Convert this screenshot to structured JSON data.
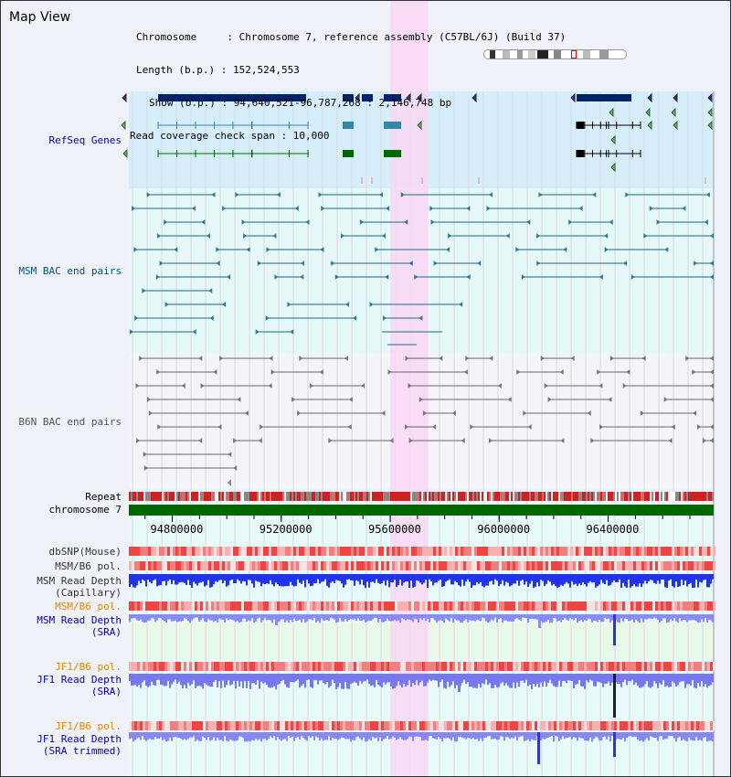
{
  "title": "Map View",
  "info": {
    "chromosome_row": "Chromosome     : Chromosome 7, reference assembly (C57BL/6J) (Build 37)",
    "length_row": "Length (b.p.) : 152,524,553",
    "show_row": "Show (b.p.) : 94,640,521-96,787,268 : 2,146,748 bp",
    "coverage_row": "Read coverage check span : 10,000"
  },
  "view": {
    "start": 94640521,
    "end": 96787268,
    "highlight": [
      95600000,
      95740000
    ]
  },
  "ideogram": {
    "label": "chromosome 7 ideogram"
  },
  "tracks": {
    "refseq": {
      "label": "RefSeq Genes",
      "color": "#0000aa"
    },
    "msm_bac": {
      "label": "MSM BAC end pairs",
      "color": "#005577"
    },
    "b6n_bac": {
      "label": "B6N BAC end pairs",
      "color": "#555555"
    },
    "repeat": {
      "label": "Repeat"
    },
    "chrom": {
      "label": "chromosome 7"
    },
    "dbsnp": {
      "label": "dbSNP(Mouse)"
    },
    "msm_pol1": {
      "label": "MSM/B6 pol."
    },
    "msm_depth_cap": {
      "label": "MSM Read Depth\n(Capillary)"
    },
    "msm_pol2": {
      "label": "MSM/B6 pol.",
      "color": "#dd8800"
    },
    "msm_depth_sra": {
      "label": "MSM Read Depth\n(SRA)",
      "color": "#0000aa"
    },
    "jf1_pol1": {
      "label": "JF1/B6 pol.",
      "color": "#dd8800"
    },
    "jf1_depth_sra": {
      "label": "JF1 Read Depth\n(SRA)",
      "color": "#0000aa"
    },
    "jf1_pol2": {
      "label": "JF1/B6 pol.",
      "color": "#dd8800"
    },
    "jf1_depth_trim": {
      "label": "JF1 Read Depth\n(SRA trimmed)",
      "color": "#0000aa"
    }
  },
  "axis": {
    "ticks": [
      "94800000",
      "95200000",
      "95600000",
      "96000000",
      "96400000"
    ],
    "tick_values": [
      94800000,
      95200000,
      95600000,
      96000000,
      96400000
    ]
  },
  "colors": {
    "refseq_bg": "#d6eefa",
    "msm_bg": "#e6f8f8",
    "b6n_bg": "#f4f4fa",
    "highlight": "#f8d8f2",
    "chrom_bar": "#006600",
    "depth_blue": "#2222ee",
    "depth_light": "#8888ff"
  }
}
